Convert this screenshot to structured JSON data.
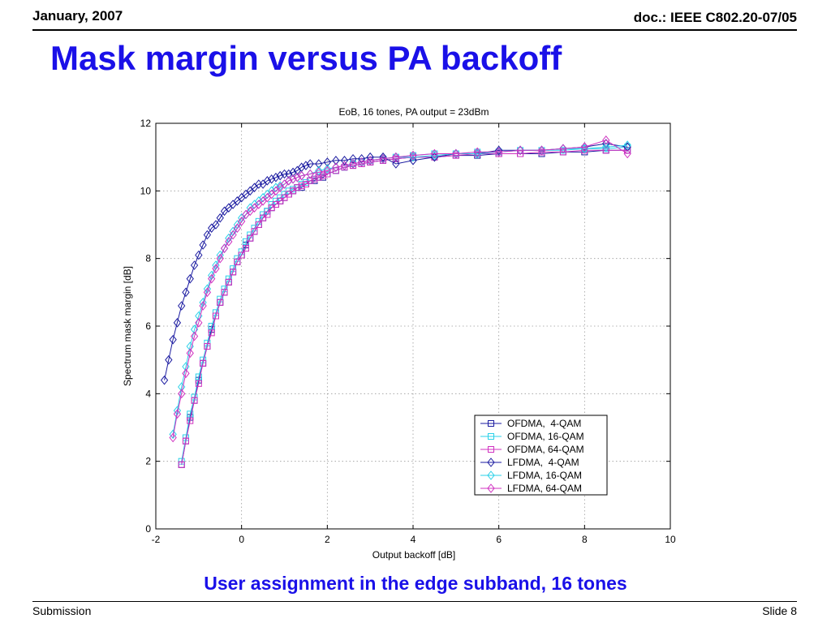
{
  "header": {
    "date": "January, 2007",
    "doc_id": "doc.: IEEE C802.20-07/05"
  },
  "slide": {
    "title": "Mask margin versus PA backoff",
    "caption": "User assignment in the edge subband, 16 tones"
  },
  "footer": {
    "left": "Submission",
    "right": "Slide 8"
  },
  "chart_data": {
    "type": "line",
    "title": "EoB, 16 tones, PA output = 23dBm",
    "xlabel": "Output backoff [dB]",
    "ylabel": "Spectrum mask margin [dB]",
    "xlim": [
      -2,
      10
    ],
    "ylim": [
      0,
      12
    ],
    "xticks": [
      -2,
      0,
      2,
      4,
      6,
      8,
      10
    ],
    "yticks": [
      0,
      2,
      4,
      6,
      8,
      10,
      12
    ],
    "grid": true,
    "legend_position": "bottom-right",
    "series": [
      {
        "name": "OFDMA,  4-QAM",
        "color": "#1a1aa0",
        "marker": "square",
        "x": [
          -1.4,
          -1.3,
          -1.2,
          -1.1,
          -1.0,
          -0.9,
          -0.8,
          -0.7,
          -0.6,
          -0.5,
          -0.4,
          -0.3,
          -0.2,
          -0.1,
          0.0,
          0.1,
          0.2,
          0.3,
          0.4,
          0.5,
          0.6,
          0.7,
          0.8,
          0.9,
          1.0,
          1.1,
          1.2,
          1.3,
          1.4,
          1.5,
          1.6,
          1.7,
          1.8,
          1.9,
          2.0,
          2.2,
          2.4,
          2.6,
          2.8,
          3.0,
          3.3,
          3.6,
          4.0,
          4.5,
          5.0,
          5.5,
          6.0,
          6.5,
          7.0,
          7.5,
          8.0,
          8.5,
          9.0
        ],
        "y": [
          1.9,
          2.6,
          3.3,
          3.8,
          4.4,
          4.9,
          5.4,
          5.9,
          6.3,
          6.7,
          7.0,
          7.3,
          7.6,
          7.9,
          8.1,
          8.4,
          8.6,
          8.8,
          9.0,
          9.2,
          9.4,
          9.5,
          9.6,
          9.7,
          9.8,
          9.9,
          10.0,
          10.1,
          10.1,
          10.2,
          10.3,
          10.3,
          10.4,
          10.4,
          10.5,
          10.6,
          10.7,
          10.75,
          10.8,
          10.85,
          10.9,
          10.95,
          11.0,
          11.0,
          11.05,
          11.05,
          11.1,
          11.1,
          11.1,
          11.15,
          11.15,
          11.2,
          11.2
        ]
      },
      {
        "name": "OFDMA, 16-QAM",
        "color": "#2ad0e8",
        "marker": "square",
        "x": [
          -1.4,
          -1.3,
          -1.2,
          -1.1,
          -1.0,
          -0.9,
          -0.8,
          -0.7,
          -0.6,
          -0.5,
          -0.4,
          -0.3,
          -0.2,
          -0.1,
          0.0,
          0.1,
          0.2,
          0.3,
          0.4,
          0.5,
          0.6,
          0.7,
          0.8,
          0.9,
          1.0,
          1.1,
          1.2,
          1.3,
          1.4,
          1.5,
          1.6,
          1.7,
          1.8,
          1.9,
          2.0,
          2.2,
          2.4,
          2.6,
          2.8,
          3.0,
          3.3,
          3.6,
          4.0,
          4.5,
          5.0,
          5.5,
          6.0,
          6.5,
          7.0,
          7.5,
          8.0,
          8.5,
          9.0
        ],
        "y": [
          2.0,
          2.7,
          3.4,
          3.9,
          4.5,
          5.0,
          5.5,
          6.0,
          6.4,
          6.8,
          7.1,
          7.4,
          7.7,
          8.0,
          8.2,
          8.5,
          8.7,
          8.9,
          9.1,
          9.3,
          9.4,
          9.6,
          9.7,
          9.8,
          9.9,
          10.0,
          10.05,
          10.1,
          10.2,
          10.25,
          10.3,
          10.35,
          10.4,
          10.45,
          10.5,
          10.6,
          10.7,
          10.8,
          10.85,
          10.9,
          10.95,
          11.0,
          11.05,
          11.1,
          11.1,
          11.15,
          11.15,
          11.2,
          11.2,
          11.2,
          11.25,
          11.25,
          11.3
        ]
      },
      {
        "name": "OFDMA, 64-QAM",
        "color": "#d030c0",
        "marker": "square",
        "x": [
          -1.4,
          -1.3,
          -1.2,
          -1.1,
          -1.0,
          -0.9,
          -0.8,
          -0.7,
          -0.6,
          -0.5,
          -0.4,
          -0.3,
          -0.2,
          -0.1,
          0.0,
          0.1,
          0.2,
          0.3,
          0.4,
          0.5,
          0.6,
          0.7,
          0.8,
          0.9,
          1.0,
          1.1,
          1.2,
          1.3,
          1.4,
          1.5,
          1.6,
          1.7,
          1.8,
          1.9,
          2.0,
          2.2,
          2.4,
          2.6,
          2.8,
          3.0,
          3.3,
          3.6,
          4.0,
          4.5,
          5.0,
          5.5,
          6.0,
          6.5,
          7.0,
          7.5,
          8.0,
          8.5,
          9.0
        ],
        "y": [
          1.9,
          2.6,
          3.2,
          3.8,
          4.3,
          4.9,
          5.4,
          5.8,
          6.3,
          6.7,
          7.0,
          7.3,
          7.6,
          7.9,
          8.1,
          8.3,
          8.6,
          8.8,
          9.0,
          9.2,
          9.3,
          9.5,
          9.6,
          9.7,
          9.8,
          9.9,
          10.0,
          10.1,
          10.15,
          10.2,
          10.3,
          10.35,
          10.4,
          10.45,
          10.5,
          10.6,
          10.7,
          10.75,
          10.8,
          10.85,
          10.9,
          10.95,
          11.0,
          11.0,
          11.05,
          11.1,
          11.1,
          11.1,
          11.15,
          11.15,
          11.2,
          11.2,
          11.2
        ]
      },
      {
        "name": "LFDMA,  4-QAM",
        "color": "#1a1aa0",
        "marker": "diamond",
        "x": [
          -1.8,
          -1.7,
          -1.6,
          -1.5,
          -1.4,
          -1.3,
          -1.2,
          -1.1,
          -1.0,
          -0.9,
          -0.8,
          -0.7,
          -0.6,
          -0.5,
          -0.4,
          -0.3,
          -0.2,
          -0.1,
          0.0,
          0.1,
          0.2,
          0.3,
          0.4,
          0.5,
          0.6,
          0.7,
          0.8,
          0.9,
          1.0,
          1.1,
          1.2,
          1.3,
          1.4,
          1.5,
          1.6,
          1.8,
          2.0,
          2.2,
          2.4,
          2.6,
          2.8,
          3.0,
          3.3,
          3.6,
          4.0,
          4.5,
          5.0,
          5.5,
          6.0,
          6.5,
          7.0,
          7.5,
          8.0,
          8.5,
          9.0
        ],
        "y": [
          4.4,
          5.0,
          5.6,
          6.1,
          6.6,
          7.0,
          7.4,
          7.8,
          8.1,
          8.4,
          8.7,
          8.9,
          9.0,
          9.2,
          9.4,
          9.5,
          9.6,
          9.7,
          9.8,
          9.9,
          10.0,
          10.1,
          10.2,
          10.2,
          10.3,
          10.35,
          10.4,
          10.45,
          10.5,
          10.5,
          10.55,
          10.6,
          10.7,
          10.75,
          10.8,
          10.8,
          10.85,
          10.9,
          10.9,
          10.95,
          10.95,
          11.0,
          11.0,
          10.8,
          10.9,
          11.0,
          11.1,
          11.1,
          11.2,
          11.2,
          11.2,
          11.25,
          11.3,
          11.4,
          11.3
        ]
      },
      {
        "name": "LFDMA, 16-QAM",
        "color": "#2ad0e8",
        "marker": "diamond",
        "x": [
          -1.6,
          -1.5,
          -1.4,
          -1.3,
          -1.2,
          -1.1,
          -1.0,
          -0.9,
          -0.8,
          -0.7,
          -0.6,
          -0.5,
          -0.4,
          -0.3,
          -0.2,
          -0.1,
          0.0,
          0.1,
          0.2,
          0.3,
          0.4,
          0.5,
          0.6,
          0.7,
          0.8,
          0.9,
          1.0,
          1.1,
          1.2,
          1.3,
          1.4,
          1.6,
          1.8,
          2.0,
          2.2,
          2.4,
          2.6,
          2.8,
          3.0,
          3.3,
          3.6,
          4.0,
          4.5,
          5.0,
          5.5,
          6.0,
          6.5,
          7.0,
          7.5,
          8.0,
          8.5,
          9.0
        ],
        "y": [
          2.8,
          3.5,
          4.2,
          4.8,
          5.4,
          5.9,
          6.3,
          6.7,
          7.1,
          7.5,
          7.8,
          8.1,
          8.3,
          8.6,
          8.8,
          9.0,
          9.2,
          9.3,
          9.5,
          9.6,
          9.7,
          9.8,
          9.9,
          10.0,
          10.1,
          10.15,
          10.2,
          10.3,
          10.35,
          10.4,
          10.45,
          10.5,
          10.6,
          10.65,
          10.7,
          10.75,
          10.8,
          10.85,
          10.9,
          10.95,
          11.0,
          11.0,
          11.05,
          11.1,
          11.1,
          11.15,
          11.2,
          11.2,
          11.25,
          11.25,
          11.3,
          11.35
        ]
      },
      {
        "name": "LFDMA, 64-QAM",
        "color": "#d030c0",
        "marker": "diamond",
        "x": [
          -1.6,
          -1.5,
          -1.4,
          -1.3,
          -1.2,
          -1.1,
          -1.0,
          -0.9,
          -0.8,
          -0.7,
          -0.6,
          -0.5,
          -0.4,
          -0.3,
          -0.2,
          -0.1,
          0.0,
          0.1,
          0.2,
          0.3,
          0.4,
          0.5,
          0.6,
          0.7,
          0.8,
          0.9,
          1.0,
          1.1,
          1.2,
          1.3,
          1.4,
          1.6,
          1.8,
          2.0,
          2.2,
          2.4,
          2.6,
          2.8,
          3.0,
          3.3,
          3.6,
          4.0,
          4.5,
          5.0,
          5.5,
          6.0,
          6.5,
          7.0,
          7.5,
          8.0,
          8.5,
          9.0
        ],
        "y": [
          2.7,
          3.4,
          4.0,
          4.6,
          5.2,
          5.7,
          6.1,
          6.6,
          7.0,
          7.4,
          7.7,
          8.0,
          8.3,
          8.5,
          8.7,
          8.9,
          9.1,
          9.3,
          9.4,
          9.5,
          9.6,
          9.7,
          9.8,
          9.9,
          10.0,
          10.1,
          10.2,
          10.3,
          10.35,
          10.4,
          10.45,
          10.5,
          10.55,
          10.6,
          10.7,
          10.75,
          10.8,
          10.85,
          10.9,
          10.95,
          11.0,
          11.05,
          11.1,
          11.1,
          11.15,
          11.15,
          11.2,
          11.2,
          11.25,
          11.3,
          11.5,
          11.1
        ]
      }
    ]
  }
}
